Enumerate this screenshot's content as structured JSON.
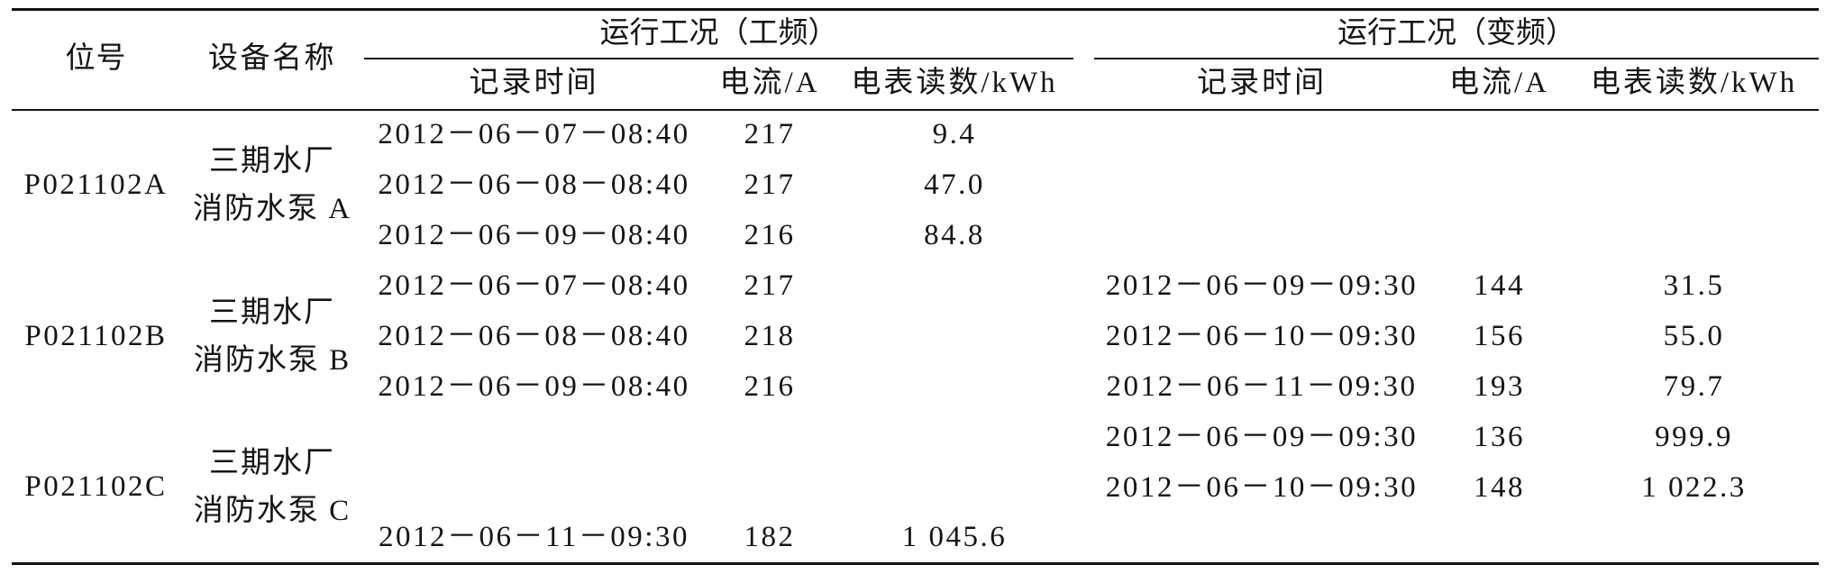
{
  "table": {
    "header": {
      "position_no": "位号",
      "equipment_name": "设备名称",
      "power_frequency": {
        "title": "运行工况（工频）",
        "record_time": "记录时间",
        "current": "电流/A",
        "meter_reading": "电表读数/kWh"
      },
      "variable_frequency": {
        "title": "运行工况（变频）",
        "record_time": "记录时间",
        "current": "电流/A",
        "meter_reading": "电表读数/kWh"
      }
    },
    "groups": [
      {
        "position_no": "P021102A",
        "equipment_name": [
          "三期水厂",
          "消防水泵 A"
        ],
        "rows": [
          {
            "pf_time": "2012－06－07－08:40",
            "pf_current": "217",
            "pf_meter": "9.4"
          },
          {
            "pf_time": "2012－06－08－08:40",
            "pf_current": "217",
            "pf_meter": "47.0"
          },
          {
            "pf_time": "2012－06－09－08:40",
            "pf_current": "216",
            "pf_meter": "84.8"
          }
        ]
      },
      {
        "position_no": "P021102B",
        "equipment_name": [
          "三期水厂",
          "消防水泵 B"
        ],
        "rows": [
          {
            "pf_time": "2012－06－07－08:40",
            "pf_current": "217",
            "vf_time": "2012－06－09－09:30",
            "vf_current": "144",
            "vf_meter": "31.5"
          },
          {
            "pf_time": "2012－06－08－08:40",
            "pf_current": "218",
            "vf_time": "2012－06－10－09:30",
            "vf_current": "156",
            "vf_meter": "55.0"
          },
          {
            "pf_time": "2012－06－09－08:40",
            "pf_current": "216",
            "vf_time": "2012－06－11－09:30",
            "vf_current": "193",
            "vf_meter": "79.7"
          }
        ]
      },
      {
        "position_no": "P021102C",
        "equipment_name": [
          "三期水厂",
          "消防水泵 C"
        ],
        "rows": [
          {
            "vf_time": "2012－06－09－09:30",
            "vf_current": "136",
            "vf_meter": "999.9"
          },
          {
            "vf_time": "2012－06－10－09:30",
            "vf_current": "148",
            "vf_meter": "1 022.3"
          },
          {
            "pf_time": "2012－06－11－09:30",
            "pf_current": "182",
            "pf_meter": "1 045.6"
          }
        ]
      }
    ]
  }
}
